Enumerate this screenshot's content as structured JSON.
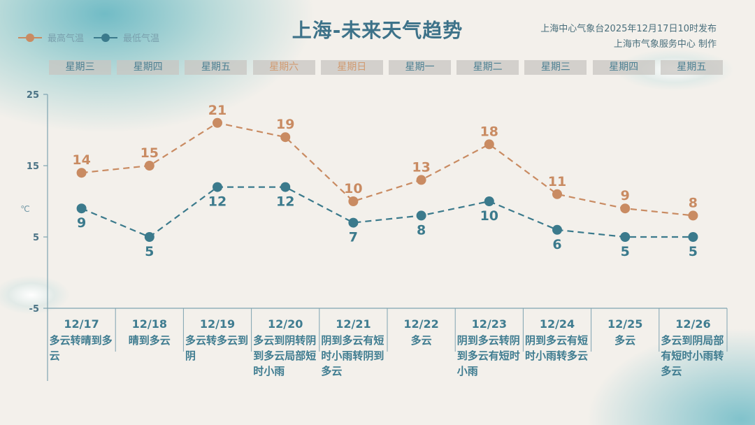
{
  "title": "上海-未来天气趋势",
  "publisher": {
    "line1": "上海中心气象台2025年12月17日10时发布",
    "line2": "上海市气象服务中心  制作"
  },
  "colors": {
    "high": "#c98b62",
    "low": "#3b7a8c",
    "title": "#3d7289",
    "weekend": "#d19a70"
  },
  "chart_data": {
    "type": "line",
    "ylabel": "℃",
    "ylim": [
      -5,
      25
    ],
    "yticks": [
      25,
      15,
      5,
      -5
    ],
    "grid": false,
    "legend_placement": "top-left",
    "weekdays": [
      "星期三",
      "星期四",
      "星期五",
      "星期六",
      "星期日",
      "星期一",
      "星期二",
      "星期三",
      "星期四",
      "星期五"
    ],
    "weekend_flags": [
      false,
      false,
      false,
      true,
      true,
      false,
      false,
      false,
      false,
      false
    ],
    "categories": [
      "12/17",
      "12/18",
      "12/19",
      "12/20",
      "12/21",
      "12/22",
      "12/23",
      "12/24",
      "12/25",
      "12/26"
    ],
    "weather": [
      "多云转晴到多云",
      "晴到多云",
      "多云转多云到阴",
      "多云到阴转阴到多云局部短时小雨",
      "阴到多云有短时小雨转阴到多云",
      "多云",
      "阴到多云转阴到多云有短时小雨",
      "阴到多云有短时小雨转多云",
      "多云",
      "多云到阴局部有短时小雨转多云"
    ],
    "series": [
      {
        "name": "最高气温",
        "color": "#c98b62",
        "values": [
          14,
          15,
          21,
          19,
          10,
          13,
          18,
          11,
          9,
          8
        ]
      },
      {
        "name": "最低气温",
        "color": "#3b7a8c",
        "values": [
          9,
          5,
          12,
          12,
          7,
          8,
          10,
          6,
          5,
          5
        ]
      }
    ]
  }
}
